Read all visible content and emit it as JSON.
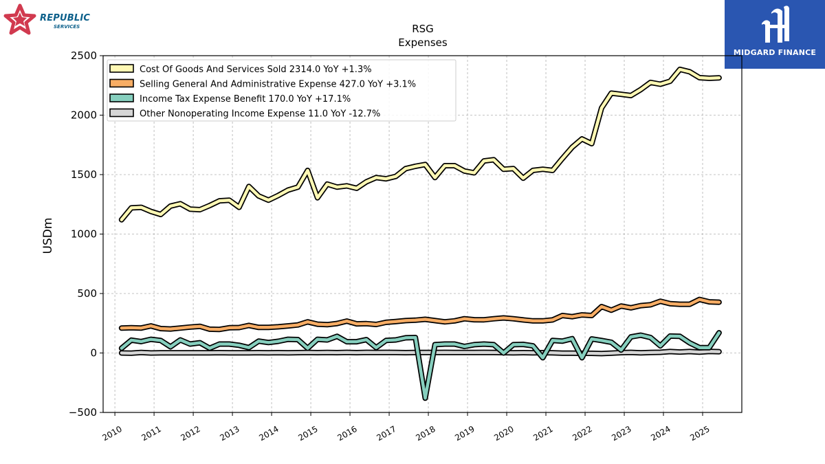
{
  "header": {
    "brand_main": "REPUBLIC",
    "brand_sub": "SERVICES",
    "watermark": "MIDGARD FINANCE"
  },
  "colors": {
    "series": [
      "#fff8b4",
      "#f7ad65",
      "#86cfbe",
      "#d6d6d6"
    ],
    "outline": "#000000",
    "grid": "#b0b0b0",
    "brand_red": "#d13a4f",
    "brand_blue": "#0b5f8a",
    "watermark_bg": "#2a56b1"
  },
  "chart_data": {
    "type": "line",
    "title": "RSG",
    "subtitle": "Expenses",
    "xlabel": "",
    "ylabel": "USDm",
    "ylim": [
      -500,
      2500
    ],
    "xlim": [
      2009.7,
      2026.0
    ],
    "yticks": [
      -500,
      0,
      500,
      1000,
      1500,
      2000,
      2500
    ],
    "ytick_labels": [
      "−500",
      "0",
      "500",
      "1000",
      "1500",
      "2000",
      "2500"
    ],
    "xticks": [
      2010,
      2011,
      2012,
      2013,
      2014,
      2015,
      2016,
      2017,
      2018,
      2019,
      2020,
      2021,
      2022,
      2023,
      2024,
      2025
    ],
    "xtick_labels": [
      "2010",
      "2011",
      "2012",
      "2013",
      "2014",
      "2015",
      "2016",
      "2017",
      "2018",
      "2019",
      "2020",
      "2021",
      "2022",
      "2023",
      "2024",
      "2025"
    ],
    "grid": true,
    "legend_position": "top-left",
    "x": [
      2010.17,
      2010.42,
      2010.67,
      2010.92,
      2011.17,
      2011.42,
      2011.67,
      2011.92,
      2012.17,
      2012.42,
      2012.67,
      2012.92,
      2013.17,
      2013.42,
      2013.67,
      2013.92,
      2014.17,
      2014.42,
      2014.67,
      2014.92,
      2015.17,
      2015.42,
      2015.67,
      2015.92,
      2016.17,
      2016.42,
      2016.67,
      2016.92,
      2017.17,
      2017.42,
      2017.67,
      2017.92,
      2018.17,
      2018.42,
      2018.67,
      2018.92,
      2019.17,
      2019.42,
      2019.67,
      2019.92,
      2020.17,
      2020.42,
      2020.67,
      2020.92,
      2021.17,
      2021.42,
      2021.67,
      2021.92,
      2022.17,
      2022.42,
      2022.67,
      2022.92,
      2023.17,
      2023.42,
      2023.67,
      2023.92,
      2024.17,
      2024.42,
      2024.67,
      2024.92,
      2025.17,
      2025.42
    ],
    "series": [
      {
        "name": "Cost Of Goods And Services Sold",
        "legend": "Cost Of Goods And Services Sold  2314.0 YoY +1.3%",
        "values": [
          1120,
          1220,
          1225,
          1190,
          1165,
          1235,
          1255,
          1210,
          1205,
          1240,
          1280,
          1285,
          1225,
          1400,
          1320,
          1285,
          1325,
          1370,
          1395,
          1535,
          1305,
          1420,
          1395,
          1405,
          1385,
          1440,
          1475,
          1465,
          1485,
          1550,
          1570,
          1585,
          1475,
          1575,
          1575,
          1530,
          1515,
          1615,
          1625,
          1545,
          1550,
          1470,
          1535,
          1545,
          1535,
          1635,
          1730,
          1800,
          1760,
          2060,
          2185,
          2175,
          2165,
          2215,
          2275,
          2260,
          2285,
          2385,
          2365,
          2315,
          2310,
          2314
        ]
      },
      {
        "name": "Selling General And Administrative Expense",
        "legend": "Selling General And Administrative Expense  427.0 YoY +3.1%",
        "values": [
          210,
          212,
          210,
          228,
          205,
          202,
          210,
          218,
          224,
          200,
          198,
          212,
          214,
          232,
          215,
          215,
          220,
          228,
          236,
          262,
          242,
          238,
          248,
          268,
          245,
          247,
          240,
          258,
          264,
          272,
          276,
          283,
          272,
          262,
          270,
          288,
          280,
          279,
          288,
          295,
          288,
          278,
          270,
          270,
          278,
          315,
          305,
          320,
          315,
          390,
          360,
          395,
          380,
          398,
          405,
          435,
          415,
          410,
          410,
          450,
          430,
          427
        ]
      },
      {
        "name": "Income Tax Expense Benefit",
        "legend": "Income Tax Expense Benefit  170.0 YoY +17.1%",
        "values": [
          40,
          108,
          96,
          115,
          105,
          52,
          110,
          75,
          86,
          40,
          75,
          75,
          65,
          45,
          100,
          88,
          98,
          115,
          113,
          40,
          115,
          110,
          140,
          95,
          95,
          112,
          45,
          105,
          110,
          128,
          130,
          -380,
          70,
          75,
          75,
          55,
          70,
          75,
          70,
          0,
          70,
          72,
          60,
          -40,
          105,
          100,
          120,
          -40,
          118,
          105,
          90,
          25,
          135,
          150,
          130,
          60,
          142,
          140,
          85,
          45,
          45,
          170
        ]
      },
      {
        "name": "Other Nonoperating Income Expense",
        "legend": "Other Nonoperating Income Expense  11.0 YoY -12.7%",
        "values": [
          0,
          -2,
          4,
          0,
          1,
          2,
          1,
          2,
          2,
          1,
          3,
          1,
          2,
          2,
          3,
          2,
          3,
          2,
          3,
          4,
          3,
          4,
          3,
          5,
          3,
          5,
          4,
          5,
          4,
          3,
          4,
          4,
          4,
          5,
          4,
          4,
          4,
          5,
          4,
          3,
          2,
          3,
          2,
          3,
          1,
          -2,
          -1,
          -3,
          -3,
          -5,
          -1,
          3,
          5,
          2,
          4,
          6,
          12,
          8,
          12,
          7,
          13,
          11
        ]
      }
    ]
  }
}
